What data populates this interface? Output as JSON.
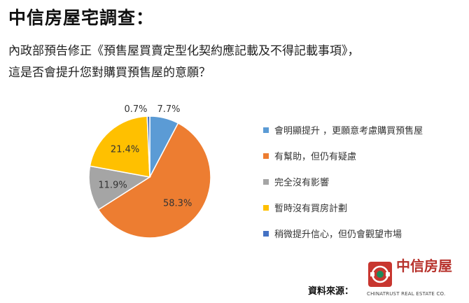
{
  "header": {
    "title": "中信房屋宅調查：",
    "subtitle_line1": "內政部預告修正《預售屋買賣定型化契約應記載及不得記載事項》，",
    "subtitle_line2": "這是否會提升您對購買預售屋的意願？"
  },
  "chart_data": {
    "type": "pie",
    "title": "",
    "legend_position": "right",
    "slices": [
      {
        "label": "會明顯提升 ，更願意考慮購買預售屋",
        "value": 7.7,
        "value_label": "7.7%",
        "color": "#5b9bd5"
      },
      {
        "label": "有幫助，但仍有疑慮",
        "value": 58.3,
        "value_label": "58.3%",
        "color": "#ed7d31"
      },
      {
        "label": "完全沒有影響",
        "value": 11.9,
        "value_label": "11.9%",
        "color": "#a5a5a5"
      },
      {
        "label": "暫時沒有買房計劃",
        "value": 21.4,
        "value_label": "21.4%",
        "color": "#ffc000"
      },
      {
        "label": "稍微提升信心，但仍會觀望市場",
        "value": 0.7,
        "value_label": "0.7%",
        "color": "#4472c4"
      }
    ]
  },
  "footer": {
    "source_label": "資料來源：",
    "logo_text": "中信房屋",
    "logo_subtext": "CHINATRUST REAL ESTATE CO."
  }
}
